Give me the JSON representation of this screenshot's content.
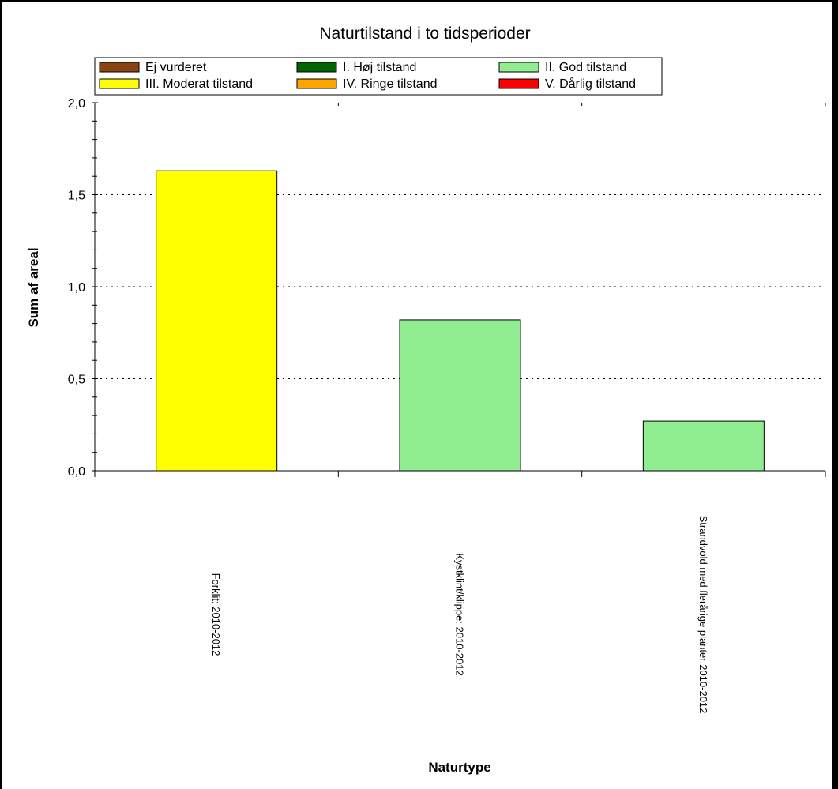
{
  "chart_data": {
    "type": "bar",
    "title": "Naturtilstand i to tidsperioder",
    "xlabel": "Naturtype",
    "ylabel": "Sum af areal",
    "ylim": [
      0,
      2
    ],
    "yticks": [
      "0,0",
      "0,5",
      "1,0",
      "1,5",
      "2,0"
    ],
    "ytick_values": [
      0,
      0.5,
      1.0,
      1.5,
      2.0
    ],
    "grid": "horizontal dotted",
    "categories": [
      "Forklit: 2010-2012",
      "Kystklint/klippe: 2010-2012",
      "Strandvold med flerårige planter:2010-2012"
    ],
    "values": [
      1.63,
      0.82,
      0.27
    ],
    "bar_colors": [
      "#ffff00",
      "#90ee90",
      "#90ee90"
    ],
    "legend": {
      "position": "top",
      "entries": [
        {
          "label": "Ej vurderet",
          "color": "#8b4513"
        },
        {
          "label": "I. Høj tilstand",
          "color": "#006400"
        },
        {
          "label": "II. God tilstand",
          "color": "#90ee90"
        },
        {
          "label": "III. Moderat tilstand",
          "color": "#ffff00"
        },
        {
          "label": "IV. Ringe tilstand",
          "color": "#ffa500"
        },
        {
          "label": "V. Dårlig tilstand",
          "color": "#ff0000"
        }
      ]
    }
  }
}
